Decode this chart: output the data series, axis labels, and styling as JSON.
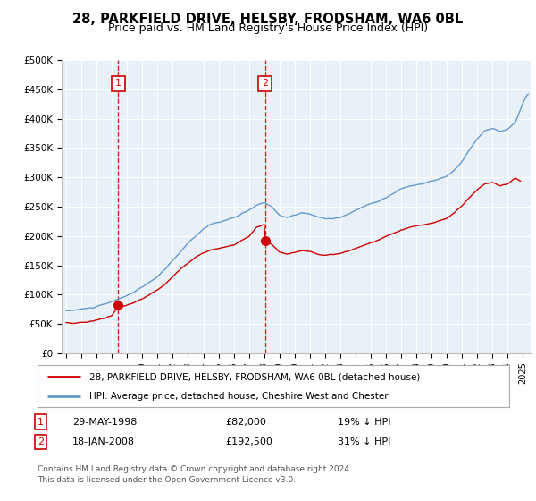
{
  "title": "28, PARKFIELD DRIVE, HELSBY, FRODSHAM, WA6 0BL",
  "subtitle": "Price paid vs. HM Land Registry's House Price Index (HPI)",
  "title_fontsize": 10.5,
  "subtitle_fontsize": 9,
  "ylabel_ticks": [
    "£0",
    "£50K",
    "£100K",
    "£150K",
    "£200K",
    "£250K",
    "£300K",
    "£350K",
    "£400K",
    "£450K",
    "£500K"
  ],
  "ytick_values": [
    0,
    50000,
    100000,
    150000,
    200000,
    250000,
    300000,
    350000,
    400000,
    450000,
    500000
  ],
  "ylim": [
    0,
    500000
  ],
  "xlim_start": 1994.7,
  "xlim_end": 2025.5,
  "plot_bg_color": "#e8f0f8",
  "grid_color": "#ffffff",
  "transaction1_x": 1998.41,
  "transaction1_y": 82000,
  "transaction1_label": "1",
  "transaction1_date": "29-MAY-1998",
  "transaction1_price": "£82,000",
  "transaction1_hpi": "19% ↓ HPI",
  "transaction2_x": 2008.05,
  "transaction2_y": 192500,
  "transaction2_label": "2",
  "transaction2_date": "18-JAN-2008",
  "transaction2_price": "£192,500",
  "transaction2_hpi": "31% ↓ HPI",
  "legend_line1": "28, PARKFIELD DRIVE, HELSBY, FRODSHAM, WA6 0BL (detached house)",
  "legend_line2": "HPI: Average price, detached house, Cheshire West and Chester",
  "footer1": "Contains HM Land Registry data © Crown copyright and database right 2024.",
  "footer2": "This data is licensed under the Open Government Licence v3.0.",
  "red_color": "#cc0000",
  "blue_color": "#6699cc"
}
